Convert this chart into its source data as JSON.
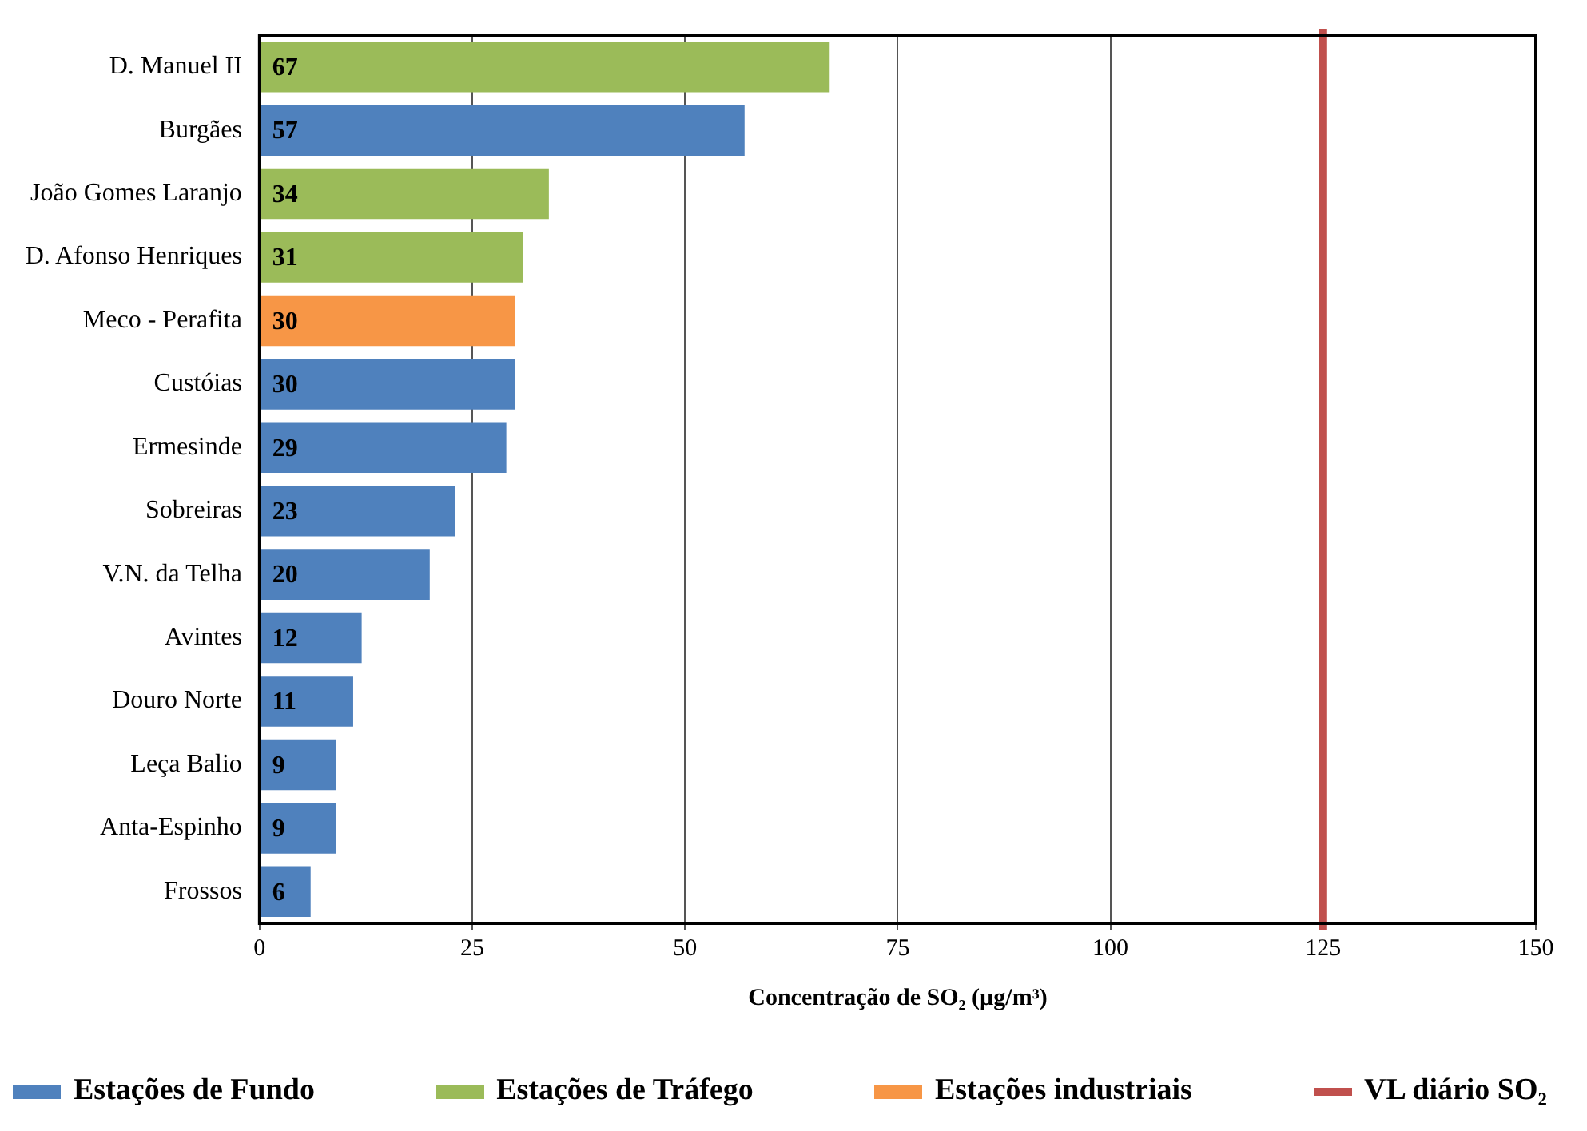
{
  "chart_data": {
    "type": "bar",
    "orientation": "horizontal",
    "xlabel": "Concentração de SO₂ (µg/m³)",
    "categories": [
      "D. Manuel II",
      "Burgães",
      "João Gomes Laranjo",
      "D. Afonso Henriques",
      "Meco - Perafita",
      "Custóias",
      "Ermesinde",
      "Sobreiras",
      "V.N. da Telha",
      "Avintes",
      "Douro Norte",
      "Leça Balio",
      "Anta-Espinho",
      "Frossos"
    ],
    "series": [
      {
        "name": "Estações de Fundo",
        "color": "#4f81bd",
        "values": [
          null,
          57,
          null,
          null,
          null,
          30,
          29,
          23,
          20,
          12,
          11,
          9,
          9,
          6
        ]
      },
      {
        "name": "Estações de Tráfego",
        "color": "#9bbb59",
        "values": [
          67,
          null,
          34,
          31,
          null,
          null,
          null,
          null,
          null,
          null,
          null,
          null,
          null,
          null
        ]
      },
      {
        "name": "Estações industriais",
        "color": "#f79646",
        "values": [
          null,
          null,
          null,
          null,
          30,
          null,
          null,
          null,
          null,
          null,
          null,
          null,
          null,
          null
        ]
      }
    ],
    "xlim": [
      0,
      150
    ],
    "xticks": [
      0,
      25,
      50,
      75,
      100,
      125,
      150
    ],
    "ref_lines": [
      {
        "axis": "x",
        "value": 125,
        "label": "VL diário SO₂",
        "color": "#c0504d"
      }
    ],
    "data_labels": true,
    "grid": "x",
    "legend": "bottom"
  }
}
